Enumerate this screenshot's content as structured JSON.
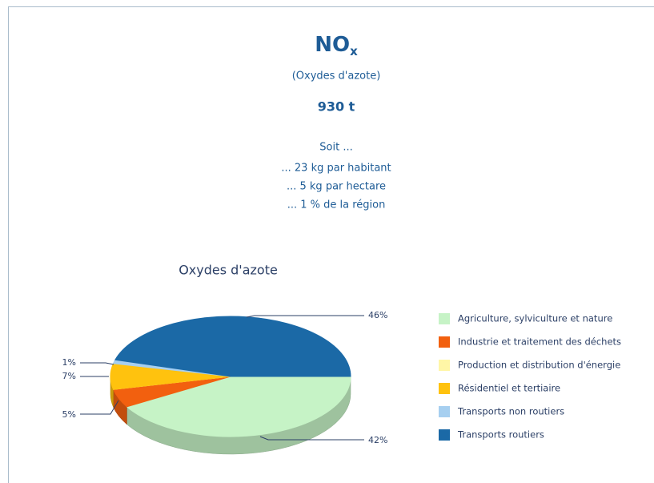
{
  "title": "NO",
  "title_subscript": "x",
  "subtitle": "(Oxydes d'azote)",
  "total": "930 t",
  "details": [
    "Soit ...",
    "... 23 kg par habitant",
    "... 5 kg par hectare",
    "... 1 % de la région"
  ],
  "chart_data": {
    "type": "pie",
    "title": "Oxydes d'azote",
    "categories": [
      "Agriculture, sylviculture et nature",
      "Industrie et traitement des déchets",
      "Production et distribution d'énergie",
      "Résidentiel et tertiaire",
      "Transports non routiers",
      "Transports routiers"
    ],
    "values": [
      42,
      5,
      0,
      7,
      1,
      46
    ],
    "value_labels": [
      "42%",
      "5%",
      null,
      "7%",
      "1%",
      "46%"
    ],
    "colors": [
      "#c6f3c6",
      "#f2600f",
      "#fff6a6",
      "#ffc20e",
      "#a6cff0",
      "#1b69a6"
    ],
    "legend": "right"
  }
}
